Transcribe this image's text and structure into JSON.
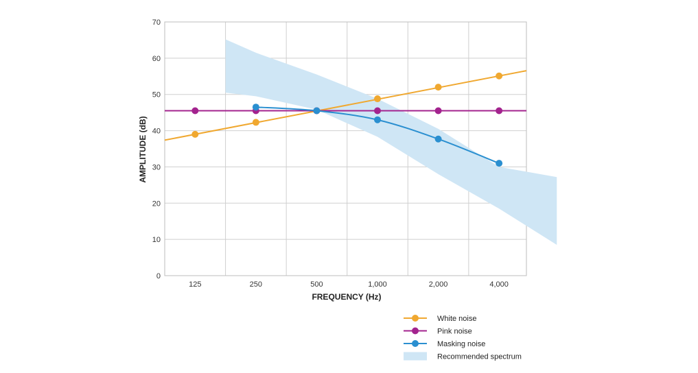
{
  "chart_data": {
    "type": "line",
    "xlabel": "FREQUENCY (Hz)",
    "ylabel": "AMPLITUDE (dB)",
    "categories": [
      "125",
      "250",
      "500",
      "1,000",
      "2,000",
      "4,000"
    ],
    "yticks": [
      "0",
      "10",
      "20",
      "30",
      "40",
      "50",
      "60",
      "70"
    ],
    "ylim": [
      0,
      70
    ],
    "grid": true,
    "legend_position": "bottom-right",
    "series": [
      {
        "name": "White noise",
        "color": "#f0a830",
        "values": [
          39,
          42.3,
          45.5,
          48.8,
          52,
          55.1
        ]
      },
      {
        "name": "Pink noise",
        "color": "#a3238e",
        "values": [
          45.5,
          45.5,
          45.5,
          45.5,
          45.5,
          45.5
        ]
      },
      {
        "name": "Masking noise",
        "color": "#2a8fd0",
        "values": [
          null,
          46.5,
          45.5,
          43,
          37.7,
          31
        ]
      }
    ],
    "band": {
      "name": "Recommended spectrum",
      "color": "#cfe6f5",
      "upper": [
        [
          0.5,
          65.2
        ],
        [
          1,
          61.5
        ],
        [
          2,
          55.5
        ],
        [
          3,
          48.8
        ],
        [
          4,
          40.5
        ],
        [
          5,
          30
        ],
        [
          5.95,
          27.2
        ]
      ],
      "lower": [
        [
          0.5,
          50.5
        ],
        [
          1,
          49.5
        ],
        [
          2,
          45.8
        ],
        [
          3,
          38.3
        ],
        [
          4,
          28
        ],
        [
          5,
          18.5
        ],
        [
          5.95,
          8.5
        ]
      ]
    },
    "legend": [
      {
        "label": "White noise",
        "color": "#f0a830",
        "kind": "line-marker"
      },
      {
        "label": "Pink noise",
        "color": "#a3238e",
        "kind": "line-marker"
      },
      {
        "label": "Masking noise",
        "color": "#2a8fd0",
        "kind": "line-marker"
      },
      {
        "label": "Recommended spectrum",
        "color": "#cfe6f5",
        "kind": "swatch"
      }
    ]
  }
}
